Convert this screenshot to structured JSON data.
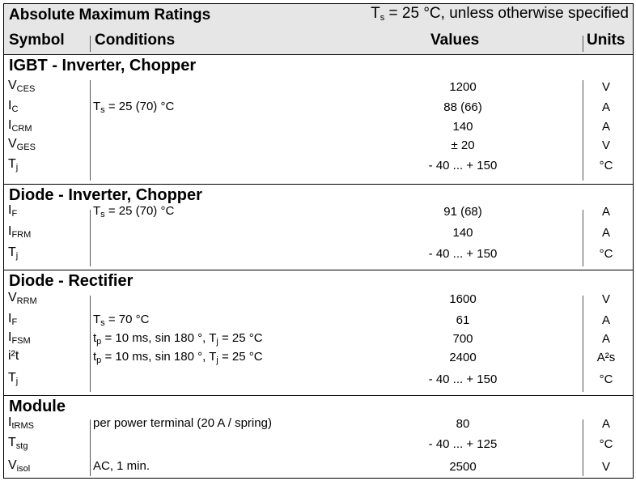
{
  "header": {
    "title": "Absolute Maximum Ratings",
    "condition_prefix": "T",
    "condition_sub": "s",
    "condition_suffix": " = 25 °C, unless otherwise specified",
    "col_symbol": "Symbol",
    "col_conditions": "Conditions",
    "col_values": "Values",
    "col_units": "Units"
  },
  "sections": [
    {
      "title": "IGBT - Inverter, Chopper",
      "rows": [
        {
          "sym": "V",
          "sub": "CES",
          "cond": "",
          "value": "1200",
          "unit": "V"
        },
        {
          "sym": "I",
          "sub": "C",
          "cond": "T_s = 25 (70) °C",
          "value": "88 (66)",
          "unit": "A"
        },
        {
          "sym": "I",
          "sub": "CRM",
          "cond": "",
          "value": "140",
          "unit": "A"
        },
        {
          "sym": "V",
          "sub": "GES",
          "cond": "",
          "value": "± 20",
          "unit": "V"
        },
        {
          "sym": "T",
          "sub": "j",
          "cond": "",
          "value": "- 40 ... + 150",
          "unit": "°C"
        }
      ]
    },
    {
      "title": "Diode - Inverter, Chopper",
      "rows": [
        {
          "sym": "I",
          "sub": "F",
          "cond": "T_s = 25 (70) °C",
          "value": "91 (68)",
          "unit": "A"
        },
        {
          "sym": "I",
          "sub": "FRM",
          "cond": "",
          "value": "140",
          "unit": "A"
        },
        {
          "sym": "T",
          "sub": "j",
          "cond": "",
          "value": "- 40 ... + 150",
          "unit": "°C"
        }
      ]
    },
    {
      "title": "Diode - Rectifier",
      "rows": [
        {
          "sym": "V",
          "sub": "RRM",
          "cond": "",
          "value": "1600",
          "unit": "V"
        },
        {
          "sym": "I",
          "sub": "F",
          "cond": "T_s = 70 °C",
          "value": "61",
          "unit": "A"
        },
        {
          "sym": "I",
          "sub": "FSM",
          "cond": "t_p = 10 ms, sin 180 °, T_j = 25 °C",
          "value": "700",
          "unit": "A"
        },
        {
          "sym": "i²t",
          "sub": "",
          "cond": "t_p = 10 ms, sin 180 °, T_j = 25 °C",
          "value": "2400",
          "unit": "A²s"
        },
        {
          "sym": "T",
          "sub": "j",
          "cond": "",
          "value": "- 40 ... + 150",
          "unit": "°C"
        }
      ]
    },
    {
      "title": "Module",
      "rows": [
        {
          "sym": "I",
          "sub": "tRMS",
          "cond": "per power terminal (20 A / spring)",
          "value": "80",
          "unit": "A"
        },
        {
          "sym": "T",
          "sub": "stg",
          "cond": "",
          "value": "- 40 ... + 125",
          "unit": "°C"
        },
        {
          "sym": "V",
          "sub": "isol",
          "cond": "AC, 1 min.",
          "value": "2500",
          "unit": "V"
        }
      ]
    }
  ]
}
